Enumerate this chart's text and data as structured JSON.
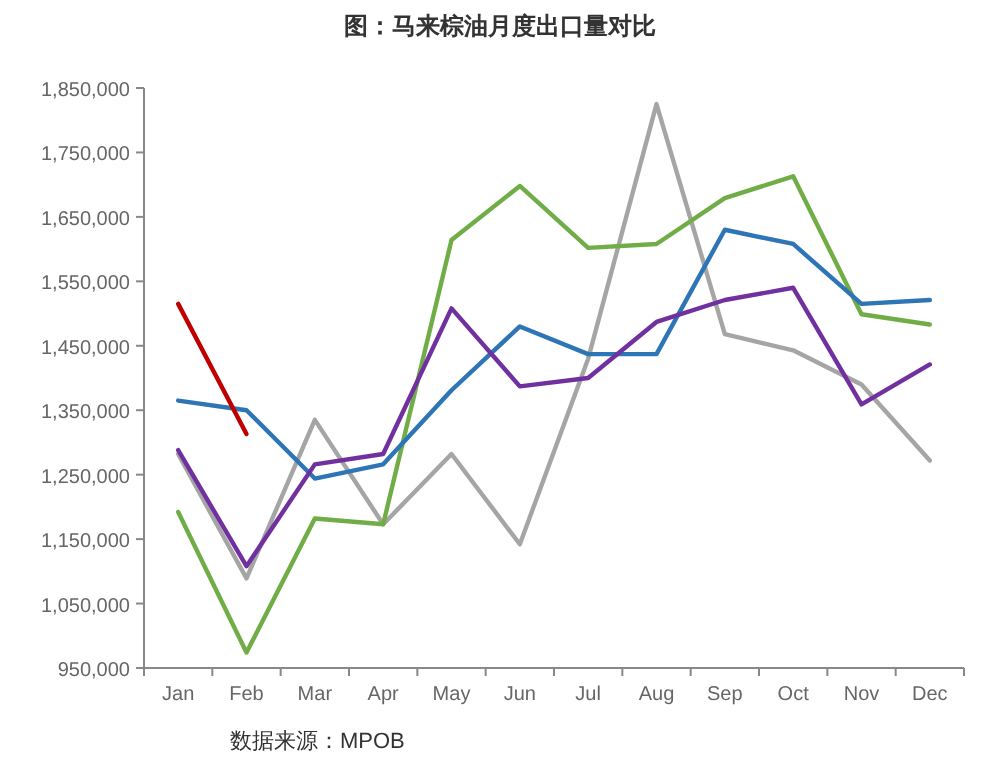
{
  "chart_data": {
    "type": "line",
    "title": "图：马来棕油月度出口量对比",
    "categories": [
      "Jan",
      "Feb",
      "Mar",
      "Apr",
      "May",
      "Jun",
      "Jul",
      "Aug",
      "Sep",
      "Oct",
      "Nov",
      "Dec"
    ],
    "series": [
      {
        "color": "#a5a5a5",
        "values": [
          1282000,
          1089000,
          1335000,
          1173000,
          1282000,
          1142000,
          1430000,
          1825000,
          1468000,
          1443000,
          1390000,
          1272000
        ]
      },
      {
        "color": "#70ad47",
        "values": [
          1192000,
          974000,
          1182000,
          1173000,
          1614000,
          1698000,
          1602000,
          1608000,
          1679000,
          1713000,
          1499000,
          1483000
        ]
      },
      {
        "color": "#2e75b6",
        "values": [
          1365000,
          1350000,
          1244000,
          1266000,
          1381000,
          1480000,
          1437000,
          1437000,
          1630000,
          1608000,
          1515000,
          1521000
        ]
      },
      {
        "color": "#7030a0",
        "values": [
          1288000,
          1108000,
          1266000,
          1282000,
          1508000,
          1387000,
          1400000,
          1487000,
          1521000,
          1540000,
          1359000,
          1421000
        ]
      },
      {
        "color": "#c00000",
        "values": [
          1515000,
          1313000,
          null,
          null,
          null,
          null,
          null,
          null,
          null,
          null,
          null,
          null
        ]
      }
    ],
    "ylim": [
      950000,
      1850000
    ],
    "yticks": [
      {
        "value": 950000,
        "label": "950,000"
      },
      {
        "value": 1050000,
        "label": "1,050,000"
      },
      {
        "value": 1150000,
        "label": "1,150,000"
      },
      {
        "value": 1250000,
        "label": "1,250,000"
      },
      {
        "value": 1350000,
        "label": "1,350,000"
      },
      {
        "value": 1450000,
        "label": "1,450,000"
      },
      {
        "value": 1550000,
        "label": "1,550,000"
      },
      {
        "value": 1650000,
        "label": "1,650,000"
      },
      {
        "value": 1750000,
        "label": "1,750,000"
      },
      {
        "value": 1850000,
        "label": "1,850,000"
      }
    ],
    "grid": false,
    "marker": "none",
    "line_style": "solid",
    "annotations": [
      "数据来源：MPOB"
    ]
  }
}
